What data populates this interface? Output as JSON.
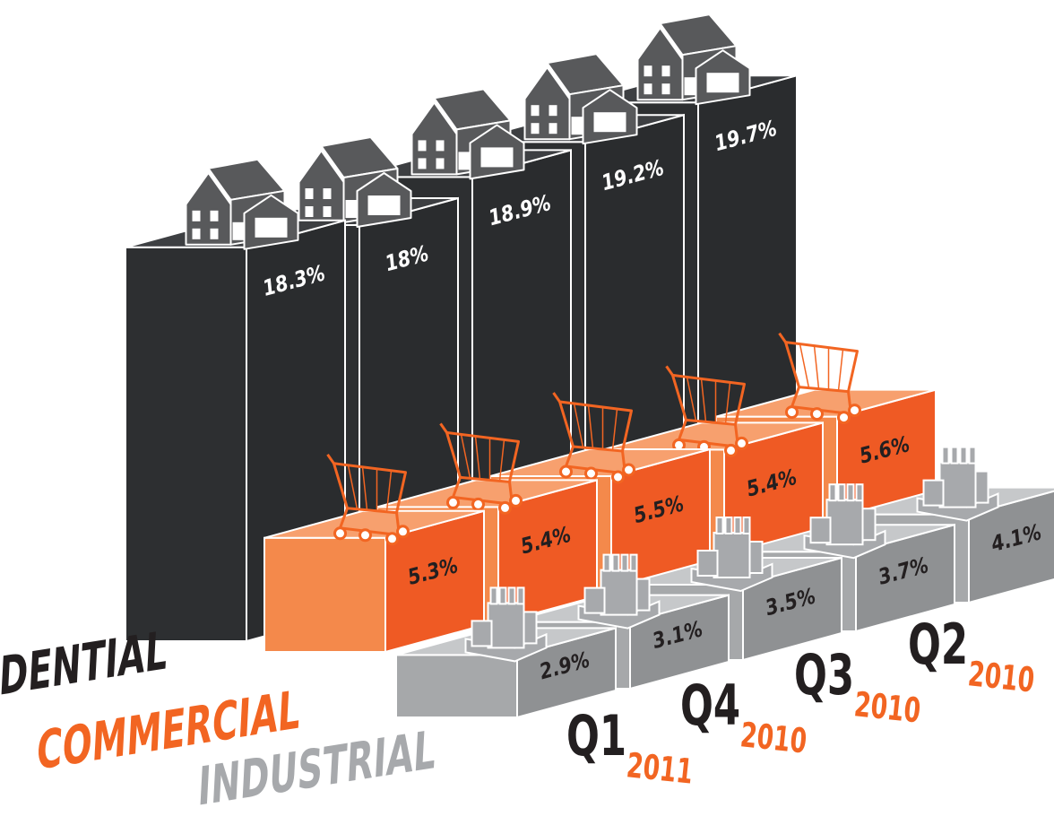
{
  "chart_data": {
    "type": "bar",
    "categories": [
      "Q1",
      "Q4",
      "Q3",
      "Q2",
      null
    ],
    "years": [
      "2011",
      "2010",
      "2010",
      "2010",
      null
    ],
    "series": [
      {
        "name": "DENTIAL",
        "color": "#2d2f31",
        "values": [
          18.3,
          18,
          18.9,
          19.2,
          19.7
        ],
        "value_labels": [
          "18.3%",
          "18%",
          "18.9%",
          "19.2%",
          "19.7%"
        ]
      },
      {
        "name": "COMMERCIAL",
        "color": "#f26522",
        "values": [
          5.3,
          5.4,
          5.5,
          5.4,
          5.6
        ],
        "value_labels": [
          "5.3%",
          "5.4%",
          "5.5%",
          "5.4%",
          "5.6%"
        ]
      },
      {
        "name": "INDUSTRIAL",
        "color": "#a7a9ac",
        "values": [
          2.9,
          3.1,
          3.5,
          3.7,
          4.1
        ],
        "value_labels": [
          "2.9%",
          "3.1%",
          "3.5%",
          "3.7%",
          "4.1%"
        ]
      }
    ]
  }
}
